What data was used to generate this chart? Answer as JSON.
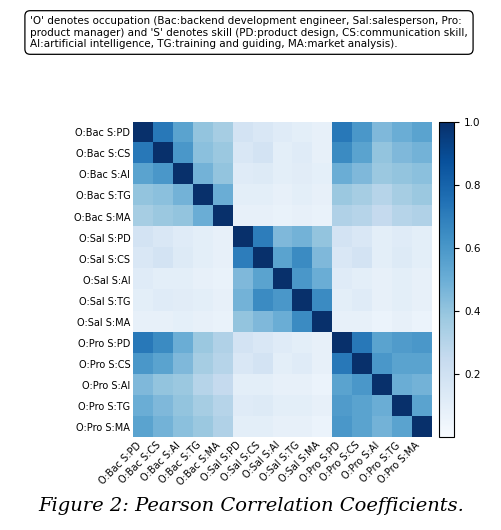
{
  "labels": [
    "O:Bac S:PD",
    "O:Bac S:CS",
    "O:Bac S:AI",
    "O:Bac S:TG",
    "O:Bac S:MA",
    "O:Sal S:PD",
    "O:Sal S:CS",
    "O:Sal S:AI",
    "O:Sal S:TG",
    "O:Sal S:MA",
    "O:Pro S:PD",
    "O:Pro S:CS",
    "O:Pro S:AI",
    "O:Pro S:TG",
    "O:Pro S:MA"
  ],
  "matrix": [
    [
      1.0,
      0.72,
      0.55,
      0.4,
      0.35,
      0.18,
      0.15,
      0.12,
      0.1,
      0.08,
      0.72,
      0.6,
      0.45,
      0.5,
      0.55
    ],
    [
      0.72,
      1.0,
      0.6,
      0.42,
      0.38,
      0.15,
      0.18,
      0.1,
      0.12,
      0.08,
      0.65,
      0.55,
      0.4,
      0.45,
      0.48
    ],
    [
      0.55,
      0.6,
      1.0,
      0.48,
      0.4,
      0.12,
      0.13,
      0.1,
      0.11,
      0.09,
      0.5,
      0.45,
      0.38,
      0.4,
      0.42
    ],
    [
      0.4,
      0.42,
      0.48,
      1.0,
      0.5,
      0.1,
      0.1,
      0.08,
      0.1,
      0.08,
      0.38,
      0.35,
      0.3,
      0.35,
      0.38
    ],
    [
      0.35,
      0.38,
      0.4,
      0.5,
      1.0,
      0.08,
      0.08,
      0.07,
      0.08,
      0.07,
      0.32,
      0.3,
      0.25,
      0.3,
      0.32
    ],
    [
      0.18,
      0.15,
      0.12,
      0.1,
      0.08,
      1.0,
      0.7,
      0.45,
      0.48,
      0.4,
      0.18,
      0.15,
      0.1,
      0.12,
      0.1
    ],
    [
      0.15,
      0.18,
      0.13,
      0.1,
      0.08,
      0.7,
      1.0,
      0.55,
      0.65,
      0.45,
      0.15,
      0.18,
      0.1,
      0.13,
      0.1
    ],
    [
      0.12,
      0.1,
      0.1,
      0.08,
      0.07,
      0.45,
      0.55,
      1.0,
      0.6,
      0.5,
      0.12,
      0.1,
      0.08,
      0.1,
      0.08
    ],
    [
      0.1,
      0.12,
      0.11,
      0.1,
      0.08,
      0.48,
      0.65,
      0.6,
      1.0,
      0.65,
      0.1,
      0.12,
      0.08,
      0.1,
      0.08
    ],
    [
      0.08,
      0.08,
      0.09,
      0.08,
      0.07,
      0.4,
      0.45,
      0.5,
      0.65,
      1.0,
      0.08,
      0.08,
      0.06,
      0.08,
      0.06
    ],
    [
      0.72,
      0.65,
      0.5,
      0.38,
      0.32,
      0.18,
      0.15,
      0.12,
      0.1,
      0.08,
      1.0,
      0.72,
      0.55,
      0.58,
      0.6
    ],
    [
      0.6,
      0.55,
      0.45,
      0.35,
      0.3,
      0.15,
      0.18,
      0.1,
      0.12,
      0.08,
      0.72,
      1.0,
      0.6,
      0.55,
      0.55
    ],
    [
      0.45,
      0.4,
      0.38,
      0.3,
      0.25,
      0.1,
      0.1,
      0.08,
      0.08,
      0.06,
      0.55,
      0.6,
      1.0,
      0.5,
      0.48
    ],
    [
      0.5,
      0.45,
      0.4,
      0.35,
      0.3,
      0.12,
      0.13,
      0.1,
      0.1,
      0.08,
      0.58,
      0.55,
      0.5,
      1.0,
      0.55
    ],
    [
      0.55,
      0.48,
      0.42,
      0.38,
      0.32,
      0.1,
      0.1,
      0.08,
      0.08,
      0.06,
      0.6,
      0.55,
      0.48,
      0.55,
      1.0
    ]
  ],
  "colormap": "Blues",
  "vmin": 0.0,
  "vmax": 1.0,
  "title": "Figure 2: Pearson Correlation Coefficients.",
  "annotation_text": "'O' denotes occupation (Bac:backend development engineer, Sal:salesperson, Pro:\nproduct manager) and 'S' denotes skill (PD:product design, CS:communication skill,\nAI:artificial intelligence, TG:training and guiding, MA:market analysis).",
  "colorbar_ticks": [
    0.2,
    0.4,
    0.6,
    0.8,
    1.0
  ],
  "figsize": [
    5.02,
    5.3
  ],
  "dpi": 100,
  "tick_fontsize": 7.0,
  "title_fontsize": 14,
  "annot_fontsize": 7.5
}
